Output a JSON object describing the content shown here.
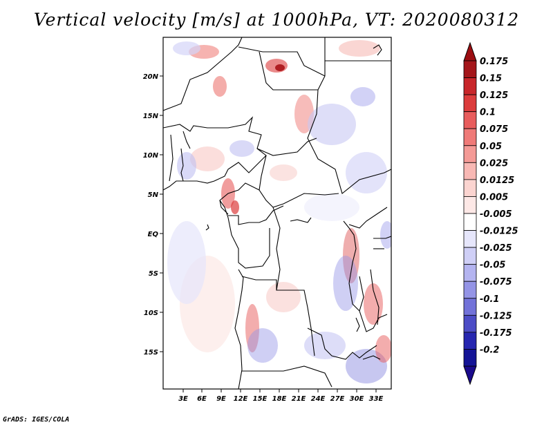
{
  "title": "Vertical velocity [m/s] at 1000hPa, VT: 2020080312",
  "footer": "GrADS: IGES/COLA",
  "map": {
    "lat_labels": [
      "20N",
      "15N",
      "10N",
      "5N",
      "EQ",
      "5S",
      "10S",
      "15S"
    ],
    "lon_labels": [
      "3E",
      "6E",
      "9E",
      "12E",
      "15E",
      "18E",
      "21E",
      "24E",
      "27E",
      "30E",
      "33E"
    ]
  },
  "colorbar": {
    "levels": [
      "0.175",
      "0.15",
      "0.125",
      "0.1",
      "0.075",
      "0.05",
      "0.025",
      "0.0125",
      "0.005",
      "-0.005",
      "-0.0125",
      "-0.025",
      "-0.05",
      "-0.075",
      "-0.1",
      "-0.125",
      "-0.175",
      "-0.2"
    ],
    "colors": [
      "#a4161a",
      "#c8262a",
      "#dc3c3c",
      "#e85c5c",
      "#ef7a78",
      "#f49a96",
      "#f8b8b4",
      "#fbd4d0",
      "#fde8e6",
      "#ffffff",
      "#e6e6fb",
      "#cfcff6",
      "#b4b4f0",
      "#9494e6",
      "#7272d9",
      "#4c4cc6",
      "#2626b0",
      "#141496"
    ],
    "top_tip_color": "#9c0e12",
    "bottom_tip_color": "#1a0a8c"
  }
}
